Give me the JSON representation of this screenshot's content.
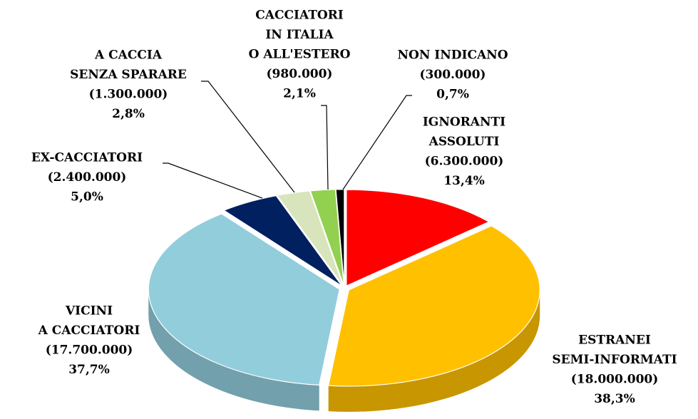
{
  "chart_data": {
    "type": "pie",
    "categories": [
      [
        "IGNORANTI",
        "ASSOLUTI"
      ],
      [
        "ESTRANEI",
        "SEMI-INFORMATI"
      ],
      [
        "VICINI",
        "A CACCIATORI"
      ],
      [
        "EX-CACCIATORI"
      ],
      [
        "A CACCIA",
        "SENZA SPARARE"
      ],
      [
        "CACCIATORI",
        "IN ITALIA",
        "O ALL'ESTERO"
      ],
      [
        "NON INDICANO"
      ]
    ],
    "values": [
      13.4,
      38.3,
      37.7,
      5.0,
      2.8,
      2.1,
      0.7
    ],
    "value_labels": [
      "13,4%",
      "38,3%",
      "37,7%",
      "5,0%",
      "2,8%",
      "2,1%",
      "0,7%"
    ],
    "counts": [
      6300000,
      18000000,
      17700000,
      2400000,
      1300000,
      980000,
      300000
    ],
    "count_labels": [
      "(6.300.000)",
      "(18.000.000)",
      "(17.700.000)",
      "(2.400.000)",
      "(1.300.000)",
      "(980.000)",
      "(300.000)"
    ],
    "colors": [
      "#ff0000",
      "#ffc000",
      "#92cddc",
      "#002060",
      "#d8e4bc",
      "#92d050",
      "#000000"
    ]
  }
}
